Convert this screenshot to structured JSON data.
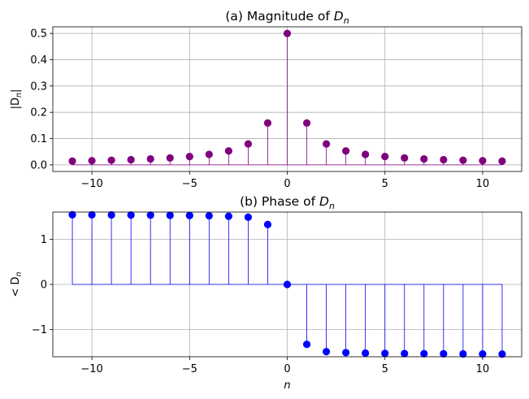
{
  "chart_data": [
    {
      "type": "stem",
      "title_prefix": "(a) Magnitude of ",
      "title_symbol": "D",
      "title_subscript": "n",
      "xlabel": "",
      "ylabel_text": "|D",
      "ylabel_subscript": "n",
      "ylabel_suffix": "|",
      "xlim": [
        -12,
        12
      ],
      "ylim": [
        -0.025,
        0.525
      ],
      "xticks": [
        -10,
        -5,
        0,
        5,
        10
      ],
      "xtick_labels": [
        "−10",
        "−5",
        "0",
        "5",
        "10"
      ],
      "yticks": [
        0,
        0.1,
        0.2,
        0.3,
        0.4,
        0.5
      ],
      "ytick_labels": [
        "0.0",
        "0.1",
        "0.2",
        "0.3",
        "0.4",
        "0.5"
      ],
      "grid": true,
      "color": "#800080",
      "x": [
        -11,
        -10,
        -9,
        -8,
        -7,
        -6,
        -5,
        -4,
        -3,
        -2,
        -1,
        0,
        1,
        2,
        3,
        4,
        5,
        6,
        7,
        8,
        9,
        10,
        11
      ],
      "values": [
        0.0145,
        0.0159,
        0.0177,
        0.0199,
        0.0227,
        0.0265,
        0.0318,
        0.0398,
        0.0531,
        0.0796,
        0.1592,
        0.5,
        0.1592,
        0.0796,
        0.0531,
        0.0398,
        0.0318,
        0.0265,
        0.0227,
        0.0199,
        0.0177,
        0.0159,
        0.0145
      ]
    },
    {
      "type": "stem",
      "title_prefix": "(b) Phase of ",
      "title_symbol": "D",
      "title_subscript": "n",
      "xlabel": "n",
      "ylabel_text": "< D",
      "ylabel_subscript": "n",
      "ylabel_suffix": "",
      "xlim": [
        -12,
        12
      ],
      "ylim": [
        -1.6,
        1.6
      ],
      "xticks": [
        -10,
        -5,
        0,
        5,
        10
      ],
      "xtick_labels": [
        "−10",
        "−5",
        "0",
        "5",
        "10"
      ],
      "yticks": [
        -1,
        0,
        1
      ],
      "ytick_labels": [
        "−1",
        "0",
        "1"
      ],
      "grid": true,
      "color": "#0000ff",
      "x": [
        -11,
        -10,
        -9,
        -8,
        -7,
        -6,
        -5,
        -4,
        -3,
        -2,
        -1,
        0,
        1,
        2,
        3,
        4,
        5,
        6,
        7,
        8,
        9,
        10,
        11
      ],
      "values": [
        1.5416,
        1.5395,
        1.5377,
        1.5354,
        1.5329,
        1.5292,
        1.5247,
        1.5182,
        1.5087,
        1.4877,
        1.3258,
        0,
        -1.3258,
        -1.4877,
        -1.5087,
        -1.5182,
        -1.5247,
        -1.5292,
        -1.5329,
        -1.5354,
        -1.5377,
        -1.5395,
        -1.5416
      ]
    }
  ]
}
